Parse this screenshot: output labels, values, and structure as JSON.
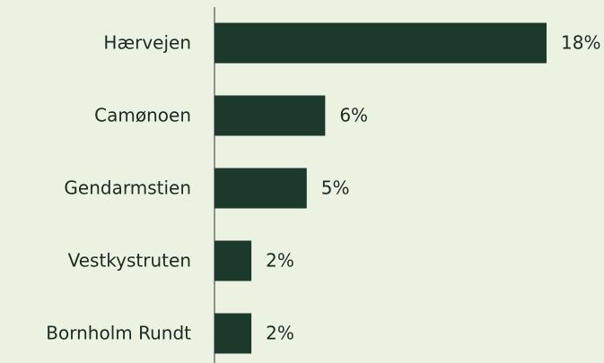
{
  "chart_data": {
    "type": "bar",
    "orientation": "horizontal",
    "categories": [
      "Hærvejen",
      "Camønoen",
      "Gendarmstien",
      "Vestkystruten",
      "Bornholm Rundt"
    ],
    "values": [
      18,
      6,
      5,
      2,
      2
    ],
    "value_labels": [
      "18%",
      "6%",
      "5%",
      "2%",
      "2%"
    ],
    "color": "#1b3a2b"
  }
}
